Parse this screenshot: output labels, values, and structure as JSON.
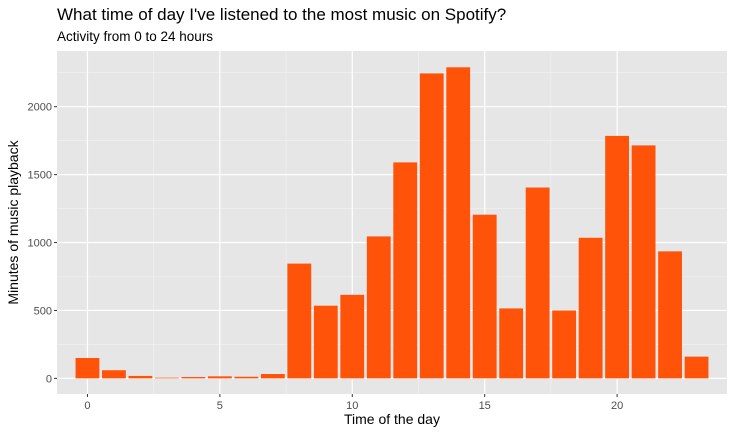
{
  "chart_data": {
    "type": "bar",
    "title": "What time of day I've listened to the most music on Spotify?",
    "subtitle": "Activity from 0 to 24 hours",
    "xlabel": "Time of the day",
    "ylabel": "Minutes of music playback",
    "x": [
      0,
      1,
      2,
      3,
      4,
      5,
      6,
      7,
      8,
      9,
      10,
      11,
      12,
      13,
      14,
      15,
      16,
      17,
      18,
      19,
      20,
      21,
      22,
      23
    ],
    "values": [
      150,
      60,
      18,
      5,
      10,
      15,
      12,
      32,
      845,
      535,
      615,
      1045,
      1590,
      2245,
      2290,
      1205,
      515,
      1405,
      500,
      1035,
      1785,
      1715,
      935,
      160
    ],
    "xlim": [
      -1.15,
      24.15
    ],
    "ylim": [
      -115,
      2410
    ],
    "xticks": [
      0,
      5,
      10,
      15,
      20
    ],
    "yticks": [
      0,
      500,
      1000,
      1500,
      2000
    ],
    "bar_color": "#FF5309",
    "panel_background": "#E6E6E6",
    "grid": true,
    "legend": "none"
  }
}
